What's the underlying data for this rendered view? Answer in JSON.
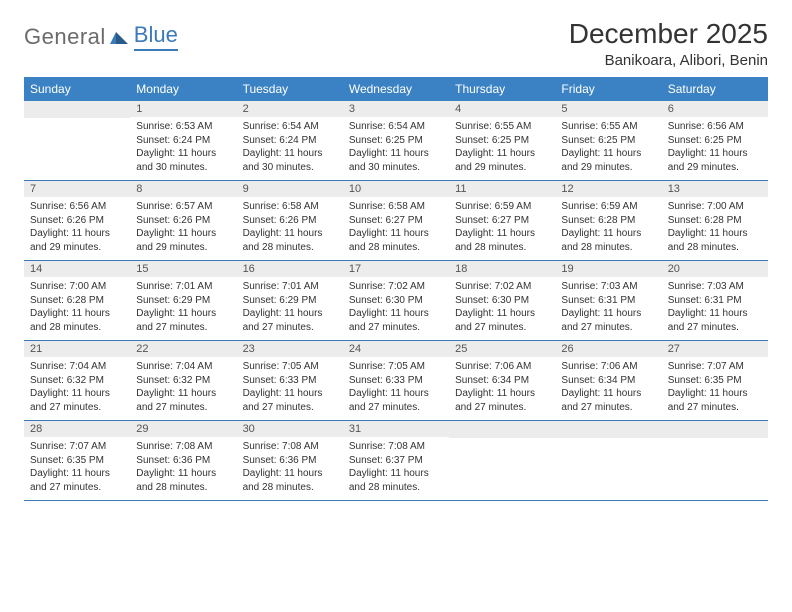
{
  "logo": {
    "textA": "General",
    "textB": "Blue"
  },
  "title": "December 2025",
  "location": "Banikoara, Alibori, Benin",
  "colors": {
    "header_bg": "#3b82c4",
    "header_fg": "#ffffff",
    "rule": "#3b7ab8",
    "daynum_bg": "#ececec",
    "logo_gray": "#6b6b6b",
    "logo_blue": "#3b7ab8"
  },
  "day_headers": [
    "Sunday",
    "Monday",
    "Tuesday",
    "Wednesday",
    "Thursday",
    "Friday",
    "Saturday"
  ],
  "weeks": [
    [
      {
        "n": "",
        "lines": []
      },
      {
        "n": "1",
        "lines": [
          "Sunrise: 6:53 AM",
          "Sunset: 6:24 PM",
          "Daylight: 11 hours and 30 minutes."
        ]
      },
      {
        "n": "2",
        "lines": [
          "Sunrise: 6:54 AM",
          "Sunset: 6:24 PM",
          "Daylight: 11 hours and 30 minutes."
        ]
      },
      {
        "n": "3",
        "lines": [
          "Sunrise: 6:54 AM",
          "Sunset: 6:25 PM",
          "Daylight: 11 hours and 30 minutes."
        ]
      },
      {
        "n": "4",
        "lines": [
          "Sunrise: 6:55 AM",
          "Sunset: 6:25 PM",
          "Daylight: 11 hours and 29 minutes."
        ]
      },
      {
        "n": "5",
        "lines": [
          "Sunrise: 6:55 AM",
          "Sunset: 6:25 PM",
          "Daylight: 11 hours and 29 minutes."
        ]
      },
      {
        "n": "6",
        "lines": [
          "Sunrise: 6:56 AM",
          "Sunset: 6:25 PM",
          "Daylight: 11 hours and 29 minutes."
        ]
      }
    ],
    [
      {
        "n": "7",
        "lines": [
          "Sunrise: 6:56 AM",
          "Sunset: 6:26 PM",
          "Daylight: 11 hours and 29 minutes."
        ]
      },
      {
        "n": "8",
        "lines": [
          "Sunrise: 6:57 AM",
          "Sunset: 6:26 PM",
          "Daylight: 11 hours and 29 minutes."
        ]
      },
      {
        "n": "9",
        "lines": [
          "Sunrise: 6:58 AM",
          "Sunset: 6:26 PM",
          "Daylight: 11 hours and 28 minutes."
        ]
      },
      {
        "n": "10",
        "lines": [
          "Sunrise: 6:58 AM",
          "Sunset: 6:27 PM",
          "Daylight: 11 hours and 28 minutes."
        ]
      },
      {
        "n": "11",
        "lines": [
          "Sunrise: 6:59 AM",
          "Sunset: 6:27 PM",
          "Daylight: 11 hours and 28 minutes."
        ]
      },
      {
        "n": "12",
        "lines": [
          "Sunrise: 6:59 AM",
          "Sunset: 6:28 PM",
          "Daylight: 11 hours and 28 minutes."
        ]
      },
      {
        "n": "13",
        "lines": [
          "Sunrise: 7:00 AM",
          "Sunset: 6:28 PM",
          "Daylight: 11 hours and 28 minutes."
        ]
      }
    ],
    [
      {
        "n": "14",
        "lines": [
          "Sunrise: 7:00 AM",
          "Sunset: 6:28 PM",
          "Daylight: 11 hours and 28 minutes."
        ]
      },
      {
        "n": "15",
        "lines": [
          "Sunrise: 7:01 AM",
          "Sunset: 6:29 PM",
          "Daylight: 11 hours and 27 minutes."
        ]
      },
      {
        "n": "16",
        "lines": [
          "Sunrise: 7:01 AM",
          "Sunset: 6:29 PM",
          "Daylight: 11 hours and 27 minutes."
        ]
      },
      {
        "n": "17",
        "lines": [
          "Sunrise: 7:02 AM",
          "Sunset: 6:30 PM",
          "Daylight: 11 hours and 27 minutes."
        ]
      },
      {
        "n": "18",
        "lines": [
          "Sunrise: 7:02 AM",
          "Sunset: 6:30 PM",
          "Daylight: 11 hours and 27 minutes."
        ]
      },
      {
        "n": "19",
        "lines": [
          "Sunrise: 7:03 AM",
          "Sunset: 6:31 PM",
          "Daylight: 11 hours and 27 minutes."
        ]
      },
      {
        "n": "20",
        "lines": [
          "Sunrise: 7:03 AM",
          "Sunset: 6:31 PM",
          "Daylight: 11 hours and 27 minutes."
        ]
      }
    ],
    [
      {
        "n": "21",
        "lines": [
          "Sunrise: 7:04 AM",
          "Sunset: 6:32 PM",
          "Daylight: 11 hours and 27 minutes."
        ]
      },
      {
        "n": "22",
        "lines": [
          "Sunrise: 7:04 AM",
          "Sunset: 6:32 PM",
          "Daylight: 11 hours and 27 minutes."
        ]
      },
      {
        "n": "23",
        "lines": [
          "Sunrise: 7:05 AM",
          "Sunset: 6:33 PM",
          "Daylight: 11 hours and 27 minutes."
        ]
      },
      {
        "n": "24",
        "lines": [
          "Sunrise: 7:05 AM",
          "Sunset: 6:33 PM",
          "Daylight: 11 hours and 27 minutes."
        ]
      },
      {
        "n": "25",
        "lines": [
          "Sunrise: 7:06 AM",
          "Sunset: 6:34 PM",
          "Daylight: 11 hours and 27 minutes."
        ]
      },
      {
        "n": "26",
        "lines": [
          "Sunrise: 7:06 AM",
          "Sunset: 6:34 PM",
          "Daylight: 11 hours and 27 minutes."
        ]
      },
      {
        "n": "27",
        "lines": [
          "Sunrise: 7:07 AM",
          "Sunset: 6:35 PM",
          "Daylight: 11 hours and 27 minutes."
        ]
      }
    ],
    [
      {
        "n": "28",
        "lines": [
          "Sunrise: 7:07 AM",
          "Sunset: 6:35 PM",
          "Daylight: 11 hours and 27 minutes."
        ]
      },
      {
        "n": "29",
        "lines": [
          "Sunrise: 7:08 AM",
          "Sunset: 6:36 PM",
          "Daylight: 11 hours and 28 minutes."
        ]
      },
      {
        "n": "30",
        "lines": [
          "Sunrise: 7:08 AM",
          "Sunset: 6:36 PM",
          "Daylight: 11 hours and 28 minutes."
        ]
      },
      {
        "n": "31",
        "lines": [
          "Sunrise: 7:08 AM",
          "Sunset: 6:37 PM",
          "Daylight: 11 hours and 28 minutes."
        ]
      },
      {
        "n": "",
        "lines": []
      },
      {
        "n": "",
        "lines": []
      },
      {
        "n": "",
        "lines": []
      }
    ]
  ]
}
